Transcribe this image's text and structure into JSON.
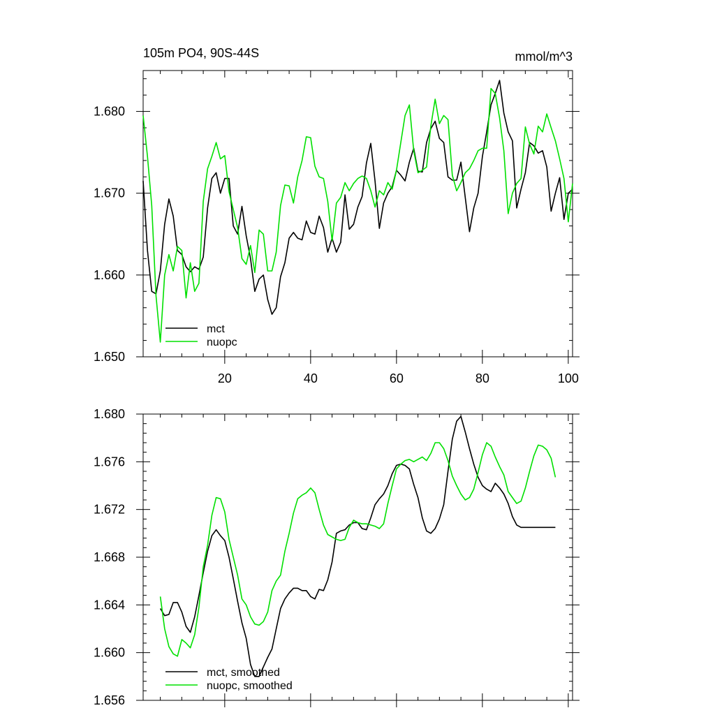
{
  "chart_data": [
    {
      "type": "line",
      "title": "105m PO4, 90S-44S",
      "units": "mmol/m^3",
      "xlim": [
        1,
        101
      ],
      "ylim": [
        1.65,
        1.685
      ],
      "xticks": [
        20,
        40,
        60,
        80,
        100
      ],
      "yticks": [
        1.65,
        1.66,
        1.67,
        1.68
      ],
      "ytick_labels": [
        "1.650",
        "1.660",
        "1.670",
        "1.680"
      ],
      "legend": {
        "position": "bottom-left"
      },
      "series": [
        {
          "name": "mct",
          "color": "#000000",
          "x": [
            1,
            2,
            3,
            4,
            5,
            6,
            7,
            8,
            9,
            10,
            11,
            12,
            13,
            14,
            15,
            16,
            17,
            18,
            19,
            20,
            21,
            22,
            23,
            24,
            25,
            26,
            27,
            28,
            29,
            30,
            31,
            32,
            33,
            34,
            35,
            36,
            37,
            38,
            39,
            40,
            41,
            42,
            43,
            44,
            45,
            46,
            47,
            48,
            49,
            50,
            51,
            52,
            53,
            54,
            55,
            56,
            57,
            58,
            59,
            60,
            61,
            62,
            63,
            64,
            65,
            66,
            67,
            68,
            69,
            70,
            71,
            72,
            73,
            74,
            75,
            76,
            77,
            78,
            79,
            80,
            81,
            82,
            83,
            84,
            85,
            86,
            87,
            88,
            89,
            90,
            91,
            92,
            93,
            94,
            95,
            96,
            97,
            98,
            99,
            100,
            101
          ],
          "values": [
            1.6715,
            1.663,
            1.658,
            1.6577,
            1.6605,
            1.6662,
            1.6693,
            1.6672,
            1.663,
            1.6625,
            1.661,
            1.6604,
            1.661,
            1.6607,
            1.6622,
            1.6682,
            1.6718,
            1.6725,
            1.67,
            1.6718,
            1.6718,
            1.666,
            1.665,
            1.6684,
            1.6648,
            1.662,
            1.658,
            1.6595,
            1.66,
            1.657,
            1.6552,
            1.656,
            1.6598,
            1.6615,
            1.6645,
            1.6652,
            1.6645,
            1.6643,
            1.6666,
            1.6652,
            1.665,
            1.6672,
            1.6658,
            1.6628,
            1.6645,
            1.6628,
            1.664,
            1.6698,
            1.6656,
            1.6662,
            1.6683,
            1.6696,
            1.6737,
            1.6761,
            1.6715,
            1.6657,
            1.6688,
            1.67,
            1.6708,
            1.6728,
            1.6722,
            1.6715,
            1.6738,
            1.6755,
            1.6727,
            1.6726,
            1.6762,
            1.6779,
            1.6788,
            1.6767,
            1.6762,
            1.672,
            1.6716,
            1.6716,
            1.6738,
            1.6695,
            1.6653,
            1.6682,
            1.67,
            1.6745,
            1.6775,
            1.6808,
            1.6822,
            1.6838,
            1.6798,
            1.6775,
            1.6764,
            1.6682,
            1.6705,
            1.6725,
            1.6762,
            1.6758,
            1.6749,
            1.6752,
            1.6732,
            1.6678,
            1.67,
            1.6719,
            1.6668,
            1.67,
            1.6705
          ]
        },
        {
          "name": "nuopc",
          "color": "#00e000",
          "x": [
            1,
            2,
            3,
            4,
            5,
            6,
            7,
            8,
            9,
            10,
            11,
            12,
            13,
            14,
            15,
            16,
            17,
            18,
            19,
            20,
            21,
            22,
            23,
            24,
            25,
            26,
            27,
            28,
            29,
            30,
            31,
            32,
            33,
            34,
            35,
            36,
            37,
            38,
            39,
            40,
            41,
            42,
            43,
            44,
            45,
            46,
            47,
            48,
            49,
            50,
            51,
            52,
            53,
            54,
            55,
            56,
            57,
            58,
            59,
            60,
            61,
            62,
            63,
            64,
            65,
            66,
            67,
            68,
            69,
            70,
            71,
            72,
            73,
            74,
            75,
            76,
            77,
            78,
            79,
            80,
            81,
            82,
            83,
            84,
            85,
            86,
            87,
            88,
            89,
            90,
            91,
            92,
            93,
            94,
            95,
            96,
            97,
            98,
            99,
            100,
            101
          ],
          "values": [
            1.6795,
            1.6745,
            1.6685,
            1.6575,
            1.6518,
            1.66,
            1.6625,
            1.6605,
            1.6635,
            1.663,
            1.6572,
            1.6615,
            1.658,
            1.659,
            1.669,
            1.673,
            1.6745,
            1.6762,
            1.6742,
            1.6746,
            1.6702,
            1.668,
            1.6658,
            1.662,
            1.6613,
            1.6636,
            1.6603,
            1.6655,
            1.665,
            1.6605,
            1.6605,
            1.6628,
            1.6685,
            1.671,
            1.6709,
            1.6688,
            1.672,
            1.674,
            1.6769,
            1.6768,
            1.6733,
            1.672,
            1.6718,
            1.669,
            1.6642,
            1.6688,
            1.6695,
            1.6713,
            1.6703,
            1.6712,
            1.6718,
            1.6721,
            1.6718,
            1.6703,
            1.6683,
            1.6703,
            1.6698,
            1.6713,
            1.6705,
            1.6728,
            1.6762,
            1.6795,
            1.6808,
            1.6752,
            1.6725,
            1.6728,
            1.6732,
            1.6782,
            1.6815,
            1.6785,
            1.6795,
            1.679,
            1.6722,
            1.6703,
            1.6713,
            1.6725,
            1.673,
            1.674,
            1.6752,
            1.6755,
            1.6755,
            1.6828,
            1.6822,
            1.6792,
            1.6752,
            1.6675,
            1.67,
            1.6712,
            1.6718,
            1.6781,
            1.676,
            1.6748,
            1.6782,
            1.6775,
            1.6797,
            1.678,
            1.6764,
            1.6742,
            1.6718,
            1.6665,
            1.6712
          ]
        }
      ]
    },
    {
      "type": "line",
      "xlim": [
        1,
        101
      ],
      "ylim": [
        1.656,
        1.68
      ],
      "xticks": [
        20,
        40,
        60,
        80,
        100
      ],
      "yticks": [
        1.656,
        1.66,
        1.664,
        1.668,
        1.672,
        1.676,
        1.68
      ],
      "ytick_labels": [
        "1.656",
        "1.660",
        "1.664",
        "1.668",
        "1.672",
        "1.676",
        "1.680"
      ],
      "legend": {
        "position": "bottom-left"
      },
      "series": [
        {
          "name": "mct, smoothed",
          "color": "#000000",
          "x": [
            5,
            6,
            7,
            8,
            9,
            10,
            11,
            12,
            13,
            14,
            15,
            16,
            17,
            18,
            19,
            20,
            21,
            22,
            23,
            24,
            25,
            26,
            27,
            28,
            29,
            30,
            31,
            32,
            33,
            34,
            35,
            36,
            37,
            38,
            39,
            40,
            41,
            42,
            43,
            44,
            45,
            46,
            47,
            48,
            49,
            50,
            51,
            52,
            53,
            54,
            55,
            56,
            57,
            58,
            59,
            60,
            61,
            62,
            63,
            64,
            65,
            66,
            67,
            68,
            69,
            70,
            71,
            72,
            73,
            74,
            75,
            76,
            77,
            78,
            79,
            80,
            81,
            82,
            83,
            84,
            85,
            86,
            87,
            88,
            89,
            90,
            91,
            92,
            93,
            94,
            95,
            96,
            97
          ],
          "values": [
            1.6637,
            1.6631,
            1.6632,
            1.6642,
            1.6642,
            1.6634,
            1.6622,
            1.6617,
            1.663,
            1.6648,
            1.6667,
            1.6685,
            1.6698,
            1.6703,
            1.6698,
            1.6694,
            1.668,
            1.6662,
            1.6643,
            1.6625,
            1.6612,
            1.659,
            1.658,
            1.658,
            1.6588,
            1.6596,
            1.6603,
            1.662,
            1.6637,
            1.6645,
            1.665,
            1.6654,
            1.6654,
            1.6652,
            1.6652,
            1.6647,
            1.6645,
            1.6653,
            1.6652,
            1.6661,
            1.6676,
            1.67,
            1.6702,
            1.6703,
            1.6707,
            1.6709,
            1.6709,
            1.6704,
            1.6703,
            1.6713,
            1.6724,
            1.6729,
            1.6733,
            1.674,
            1.675,
            1.6757,
            1.6758,
            1.6757,
            1.6754,
            1.6741,
            1.673,
            1.6713,
            1.6702,
            1.67,
            1.6704,
            1.6712,
            1.6724,
            1.6752,
            1.6779,
            1.6794,
            1.6798,
            1.6785,
            1.6771,
            1.6758,
            1.6747,
            1.674,
            1.6737,
            1.6735,
            1.6742,
            1.6738,
            1.6733,
            1.6725,
            1.6714,
            1.6707,
            1.6705,
            1.6705,
            1.6705,
            1.6705,
            1.6705,
            1.6705,
            1.6705,
            1.6705,
            1.6705
          ]
        },
        {
          "name": "nuopc, smoothed",
          "color": "#00e000",
          "x": [
            5,
            6,
            7,
            8,
            9,
            10,
            11,
            12,
            13,
            14,
            15,
            16,
            17,
            18,
            19,
            20,
            21,
            22,
            23,
            24,
            25,
            26,
            27,
            28,
            29,
            30,
            31,
            32,
            33,
            34,
            35,
            36,
            37,
            38,
            39,
            40,
            41,
            42,
            43,
            44,
            45,
            46,
            47,
            48,
            49,
            50,
            51,
            52,
            53,
            54,
            55,
            56,
            57,
            58,
            59,
            60,
            61,
            62,
            63,
            64,
            65,
            66,
            67,
            68,
            69,
            70,
            71,
            72,
            73,
            74,
            75,
            76,
            77,
            78,
            79,
            80,
            81,
            82,
            83,
            84,
            85,
            86,
            87,
            88,
            89,
            90,
            91,
            92,
            93,
            94,
            95,
            96,
            97
          ],
          "values": [
            1.6647,
            1.662,
            1.6605,
            1.6599,
            1.6597,
            1.6611,
            1.6608,
            1.6604,
            1.6615,
            1.6638,
            1.6672,
            1.669,
            1.6715,
            1.673,
            1.6729,
            1.6718,
            1.6695,
            1.668,
            1.6665,
            1.6645,
            1.664,
            1.663,
            1.6624,
            1.6623,
            1.6626,
            1.6634,
            1.6652,
            1.666,
            1.6665,
            1.6685,
            1.67,
            1.6717,
            1.6729,
            1.6732,
            1.6734,
            1.6738,
            1.6734,
            1.672,
            1.6707,
            1.6699,
            1.6697,
            1.6695,
            1.6694,
            1.6695,
            1.6705,
            1.6711,
            1.6709,
            1.6708,
            1.6708,
            1.6707,
            1.6706,
            1.6704,
            1.6708,
            1.6725,
            1.674,
            1.6754,
            1.6758,
            1.6761,
            1.6762,
            1.676,
            1.6762,
            1.6764,
            1.6761,
            1.6767,
            1.6776,
            1.6776,
            1.6771,
            1.6761,
            1.6748,
            1.674,
            1.6733,
            1.6728,
            1.673,
            1.6737,
            1.6751,
            1.6766,
            1.6776,
            1.6773,
            1.6764,
            1.6756,
            1.6749,
            1.6735,
            1.673,
            1.6725,
            1.6727,
            1.6738,
            1.6752,
            1.6765,
            1.6774,
            1.6773,
            1.677,
            1.6763,
            1.6747
          ]
        }
      ]
    }
  ]
}
